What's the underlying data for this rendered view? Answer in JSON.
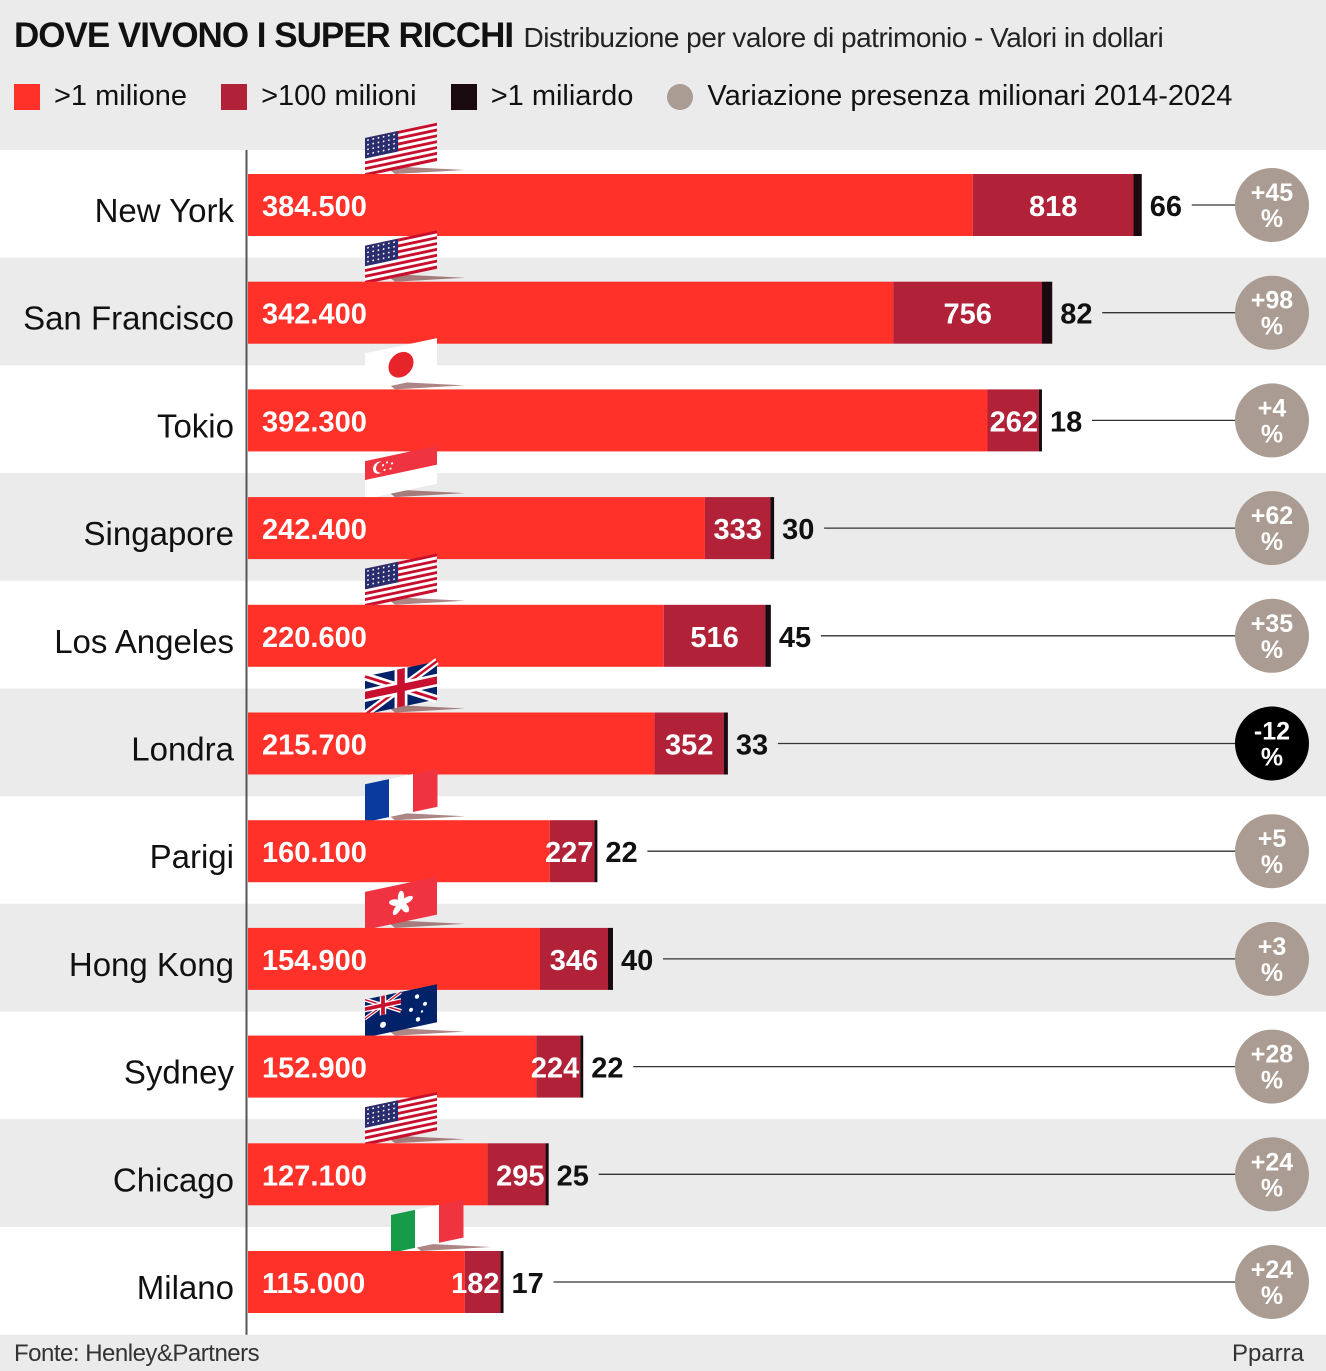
{
  "header": {
    "title": "DOVE VIVONO I SUPER RICCHI",
    "subtitle": "Distribuzione per valore di patrimonio - Valori in dollari"
  },
  "legend": [
    {
      "label": ">1 milione",
      "color": "#ff3128",
      "shape": "square"
    },
    {
      "label": ">100 milioni",
      "color": "#b12239",
      "shape": "square"
    },
    {
      "label": ">1 miliardo",
      "color": "#1a0a10",
      "shape": "square"
    },
    {
      "label": "Variazione presenza milionari 2014-2024",
      "color": "#aa9c92",
      "shape": "circle"
    }
  ],
  "colors": {
    "millionaires": "#ff3128",
    "centimillionaires": "#b12239",
    "billionaires": "#1a0a10",
    "change_positive": "#aa9c92",
    "change_negative": "#000000",
    "row_white": "#ffffff",
    "row_grey": "#ebebeb"
  },
  "chart_data": {
    "type": "bar",
    "orientation": "horizontal",
    "stacked": true,
    "title": "DOVE VIVONO I SUPER RICCHI",
    "subtitle": "Distribuzione per valore di patrimonio - Valori in dollari",
    "categories": [
      "New York",
      "San Francisco",
      "Tokio",
      "Singapore",
      "Los Angeles",
      "Londra",
      "Parigi",
      "Hong Kong",
      "Sydney",
      "Chicago",
      "Milano"
    ],
    "series": [
      {
        "name": ">1 milione",
        "values": [
          384500,
          342400,
          392300,
          242400,
          220600,
          215700,
          160100,
          154900,
          152900,
          127100,
          115000
        ]
      },
      {
        "name": ">100 milioni",
        "values": [
          818,
          756,
          262,
          333,
          516,
          352,
          227,
          346,
          224,
          295,
          182
        ]
      },
      {
        "name": ">1 miliardo",
        "values": [
          66,
          82,
          18,
          30,
          45,
          33,
          22,
          40,
          22,
          25,
          17
        ]
      }
    ],
    "value_labels": {
      "millionaires": [
        "384.500",
        "342.400",
        "392.300",
        "242.400",
        "220.600",
        "215.700",
        "160.100",
        "154.900",
        "152.900",
        "127.100",
        "115.000"
      ],
      "centimillionaires": [
        "818",
        "756",
        "262",
        "333",
        "516",
        "352",
        "227",
        "346",
        "224",
        "295",
        "182"
      ],
      "billionaires": [
        "66",
        "82",
        "18",
        "30",
        "45",
        "33",
        "22",
        "40",
        "22",
        "25",
        "17"
      ]
    },
    "change_2014_2024": {
      "name": "Variazione presenza milionari 2014-2024",
      "values": [
        45,
        98,
        4,
        62,
        35,
        -12,
        5,
        3,
        28,
        24,
        24
      ],
      "labels": [
        "+45",
        "+98",
        "+4",
        "+62",
        "+35",
        "-12",
        "+5",
        "+3",
        "+28",
        "+24",
        "+24"
      ],
      "unit": "%"
    },
    "flags": [
      "usa-flag-icon",
      "usa-flag-icon",
      "japan-flag-icon",
      "singapore-flag-icon",
      "usa-flag-icon",
      "uk-flag-icon",
      "france-flag-icon",
      "hong-kong-flag-icon",
      "australia-flag-icon",
      "usa-flag-icon",
      "italy-flag-icon"
    ],
    "legend_position": "top-left"
  },
  "footer": {
    "source": "Fonte: Henley&Partners",
    "credit": "Pparra"
  }
}
